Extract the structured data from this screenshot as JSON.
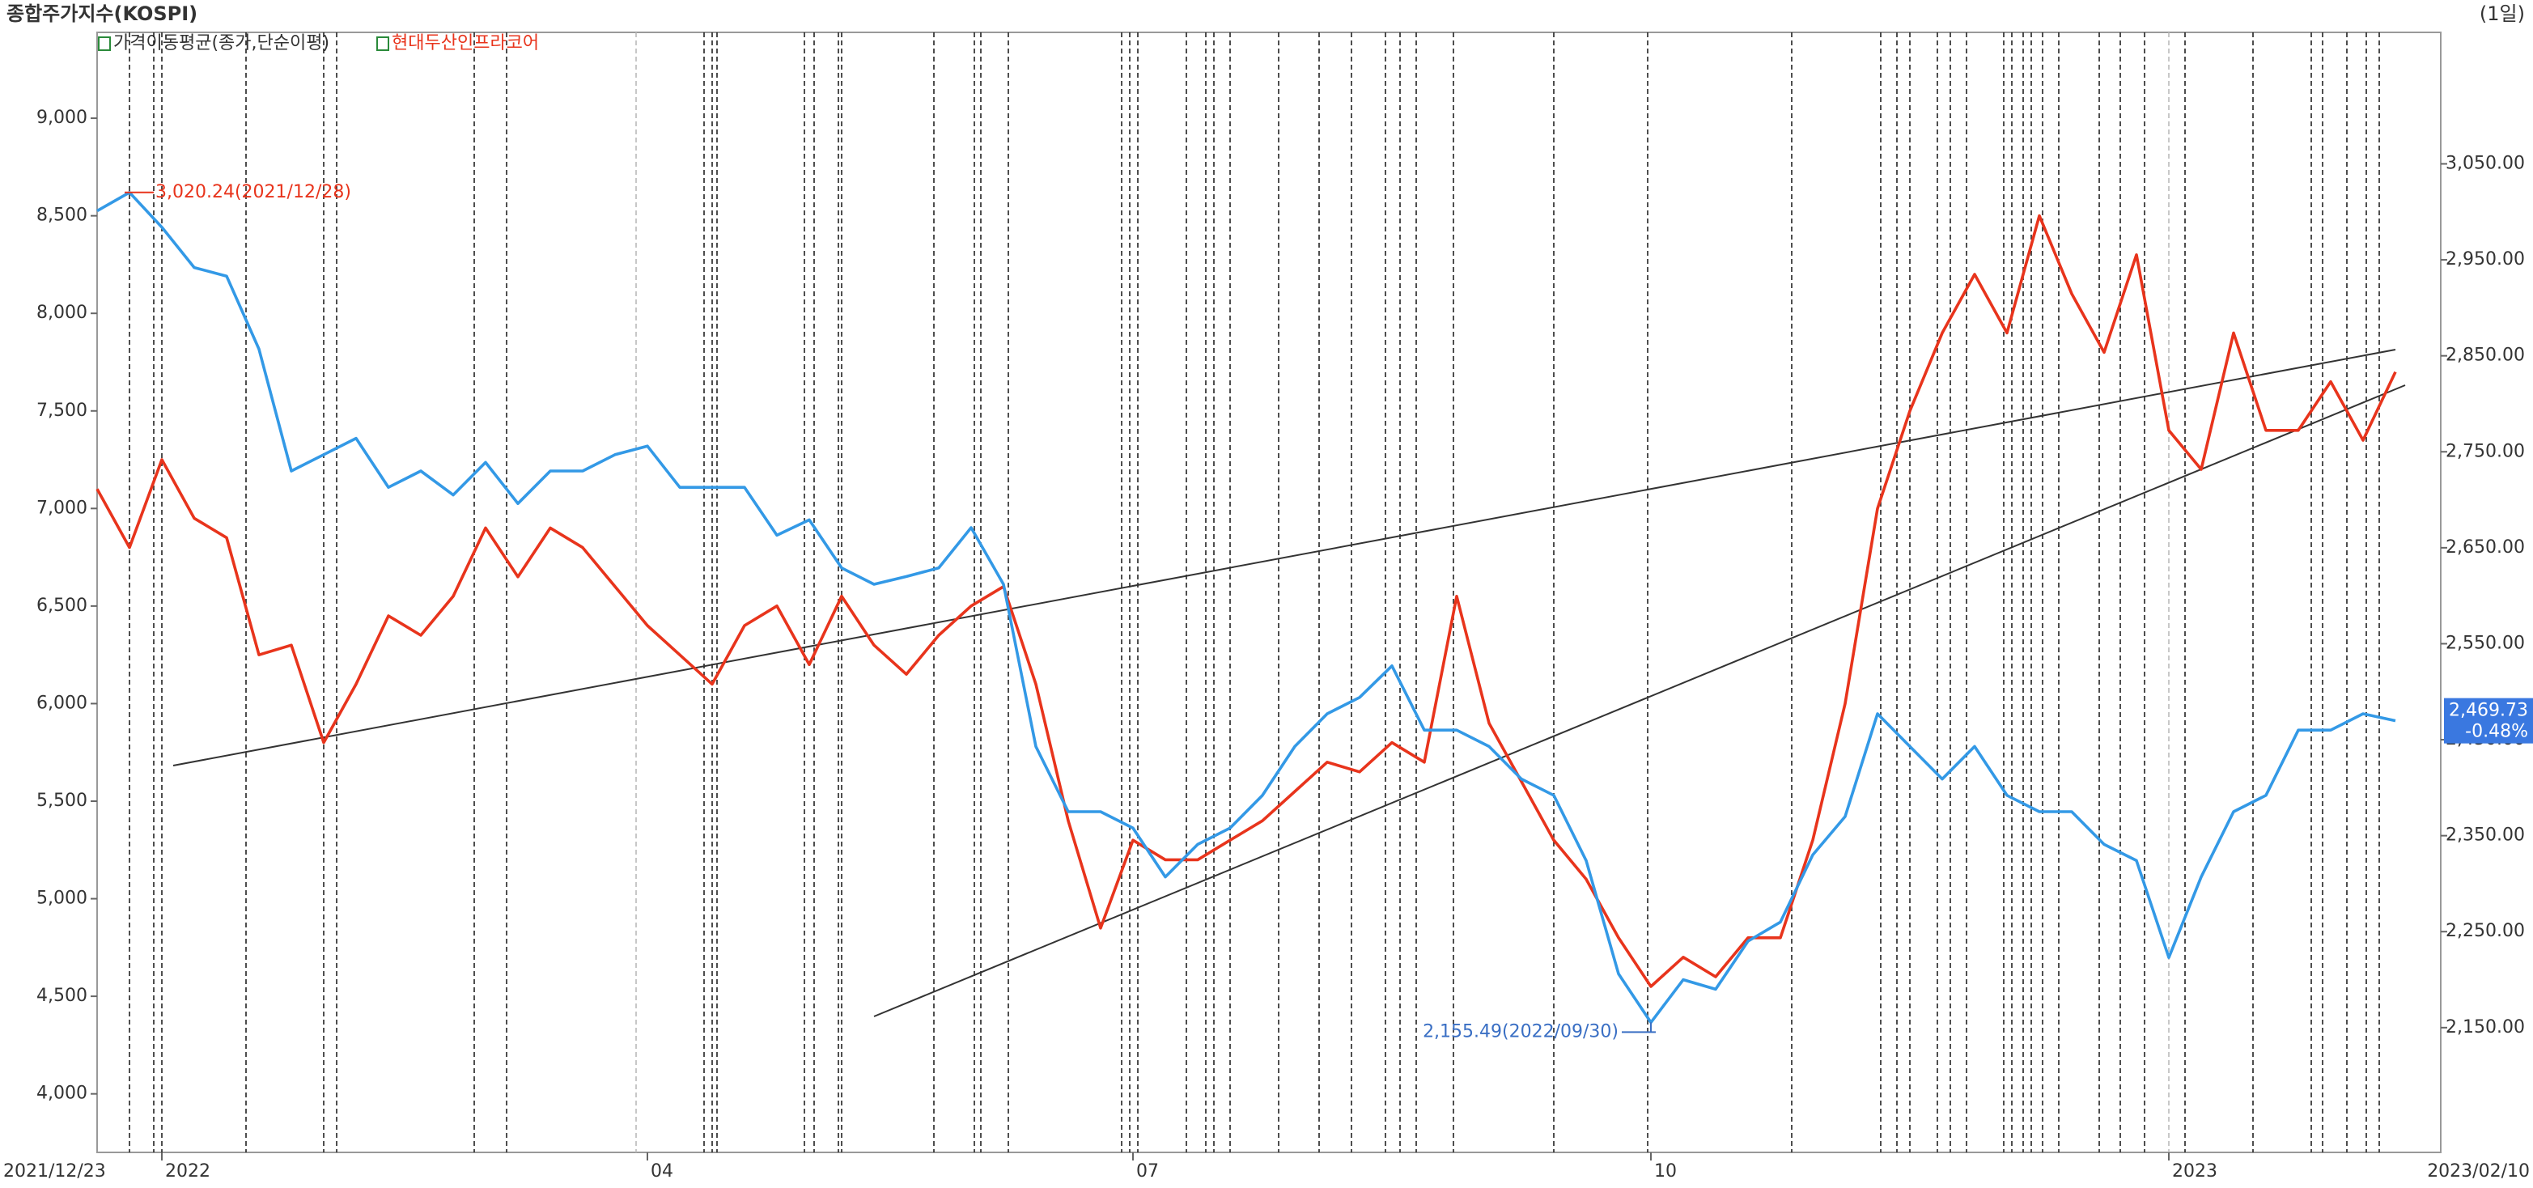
{
  "chart_data": {
    "type": "line",
    "title": "종합주가지수(KOSPI)",
    "period": "(1일)",
    "indicator": "가격이동평균(종가,단순이평)",
    "categories": [
      "2021/12/23",
      null,
      "2022",
      null,
      null,
      null,
      null,
      null,
      null,
      null,
      null,
      null,
      null,
      null,
      null,
      null,
      null,
      "04",
      null,
      null,
      null,
      null,
      null,
      null,
      null,
      null,
      null,
      null,
      null,
      null,
      null,
      null,
      "07",
      null,
      null,
      null,
      null,
      null,
      null,
      null,
      null,
      null,
      null,
      null,
      null,
      null,
      null,
      null,
      "10",
      null,
      null,
      null,
      null,
      null,
      null,
      null,
      null,
      null,
      null,
      null,
      null,
      null,
      null,
      null,
      "2023",
      null,
      null,
      null,
      null,
      null,
      null,
      "2023/02/10"
    ],
    "series": [
      {
        "name": "현대두산인프라코어",
        "color": "#e8341c",
        "axis": "y",
        "values": [
          7100,
          6800,
          7250,
          6950,
          6850,
          6250,
          6300,
          5800,
          6100,
          6450,
          6350,
          6550,
          6900,
          6650,
          6900,
          6800,
          6600,
          6400,
          6250,
          6100,
          6400,
          6500,
          6200,
          6550,
          6300,
          6150,
          6350,
          6500,
          6600,
          6100,
          5400,
          4850,
          5300,
          5200,
          5200,
          5300,
          5400,
          5550,
          5700,
          5650,
          5800,
          5700,
          6550,
          5900,
          5600,
          5300,
          5100,
          4800,
          4550,
          4700,
          4600,
          4800,
          4800,
          5300,
          6000,
          7000,
          7500,
          7900,
          8200,
          7900,
          8500,
          8100,
          7800,
          8300,
          7400,
          7200,
          7900,
          7400,
          7400,
          7650,
          7350,
          7700
        ]
      },
      {
        "color": "#3399e6",
        "axis": "y2",
        "values": [
          3001,
          3020.24,
          2984,
          2942,
          2933,
          2857,
          2730,
          2747,
          2764,
          2713,
          2730,
          2705,
          2739,
          2696,
          2730,
          2730,
          2747,
          2756,
          2713,
          2713,
          2713,
          2663,
          2679,
          2629,
          2612,
          2620,
          2629,
          2671,
          2612,
          2443,
          2375,
          2375,
          2358,
          2307,
          2341,
          2358,
          2392,
          2443,
          2477,
          2494,
          2527,
          2460,
          2460,
          2443,
          2409,
          2392,
          2324,
          2206,
          2155.49,
          2200,
          2190,
          2240,
          2260,
          2330,
          2370,
          2477,
          2443,
          2409,
          2443,
          2392,
          2375,
          2375,
          2341,
          2324,
          2223,
          2307,
          2375,
          2392,
          2460,
          2460,
          2477,
          2469.73
        ]
      }
    ],
    "ylim": [
      3700,
      9440
    ],
    "yticks": [
      {
        "value": 4000,
        "label": "4,000"
      },
      {
        "value": 4500,
        "label": "4,500"
      },
      {
        "value": 5000,
        "label": "5,000"
      },
      {
        "value": 5500,
        "label": "5,500"
      },
      {
        "value": 6000,
        "label": "6,000"
      },
      {
        "value": 6500,
        "label": "6,500"
      },
      {
        "value": 7000,
        "label": "7,000"
      },
      {
        "value": 7500,
        "label": "7,500"
      },
      {
        "value": 8000,
        "label": "8,000"
      },
      {
        "value": 8500,
        "label": "8,500"
      },
      {
        "value": 9000,
        "label": "9,000"
      }
    ],
    "y2lim": [
      2020,
      3187
    ],
    "y2ticks": [
      {
        "value": 2150,
        "label": "2,150.00"
      },
      {
        "value": 2250,
        "label": "2,250.00"
      },
      {
        "value": 2350,
        "label": "2,350.00"
      },
      {
        "value": 2450,
        "label": "2,450.00"
      },
      {
        "value": 2550,
        "label": "2,550.00"
      },
      {
        "value": 2650,
        "label": "2,650.00"
      },
      {
        "value": 2750,
        "label": "2,750.00"
      },
      {
        "value": 2850,
        "label": "2,850.00"
      },
      {
        "value": 2950,
        "label": "2,950.00"
      },
      {
        "value": 3050,
        "label": "3,050.00"
      }
    ],
    "max_label": "3,020.24(2021/12/28)",
    "min_label": "2,155.49(2022/09/30)",
    "last_value": "2,469.73",
    "last_change": "-0.48%"
  }
}
